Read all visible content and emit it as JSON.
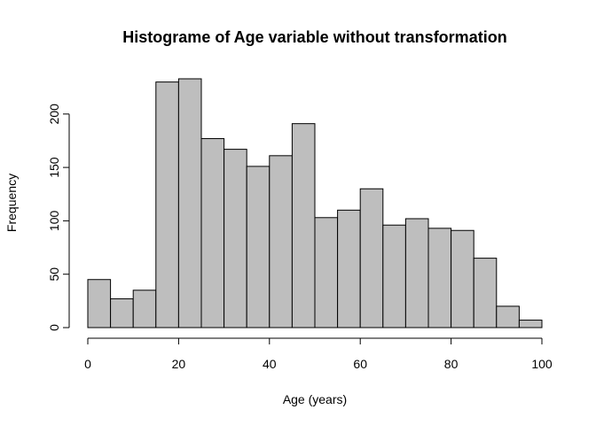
{
  "chart_data": {
    "type": "bar",
    "title": "Histograme of Age variable without transformation",
    "xlabel": "Age (years)",
    "ylabel": "Frequency",
    "bins": [
      {
        "x0": 0,
        "x1": 5,
        "count": 45
      },
      {
        "x0": 5,
        "x1": 10,
        "count": 27
      },
      {
        "x0": 10,
        "x1": 15,
        "count": 35
      },
      {
        "x0": 15,
        "x1": 20,
        "count": 230
      },
      {
        "x0": 20,
        "x1": 25,
        "count": 233
      },
      {
        "x0": 25,
        "x1": 30,
        "count": 177
      },
      {
        "x0": 30,
        "x1": 35,
        "count": 167
      },
      {
        "x0": 35,
        "x1": 40,
        "count": 151
      },
      {
        "x0": 40,
        "x1": 45,
        "count": 161
      },
      {
        "x0": 45,
        "x1": 50,
        "count": 191
      },
      {
        "x0": 50,
        "x1": 55,
        "count": 103
      },
      {
        "x0": 55,
        "x1": 60,
        "count": 110
      },
      {
        "x0": 60,
        "x1": 65,
        "count": 130
      },
      {
        "x0": 65,
        "x1": 70,
        "count": 96
      },
      {
        "x0": 70,
        "x1": 75,
        "count": 102
      },
      {
        "x0": 75,
        "x1": 80,
        "count": 93
      },
      {
        "x0": 80,
        "x1": 85,
        "count": 91
      },
      {
        "x0": 85,
        "x1": 90,
        "count": 65
      },
      {
        "x0": 90,
        "x1": 95,
        "count": 20
      },
      {
        "x0": 95,
        "x1": 100,
        "count": 7
      }
    ],
    "xticks": [
      0,
      20,
      40,
      60,
      80,
      100
    ],
    "yticks": [
      0,
      50,
      100,
      150,
      200
    ],
    "xlim": [
      0,
      100
    ],
    "ylim": [
      0,
      233
    ],
    "grid": false,
    "bar_fill": "#bebebe",
    "bar_edge": "#000000"
  }
}
